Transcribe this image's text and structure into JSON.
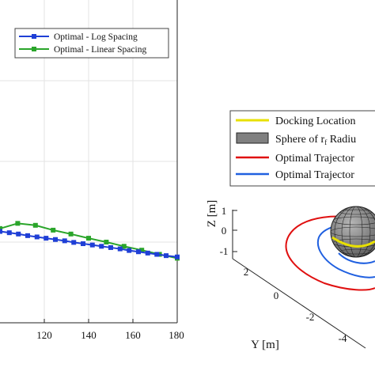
{
  "chart_data": [
    {
      "type": "line",
      "title": "",
      "xlabel": "",
      "ylabel": "",
      "xlim": [
        100,
        180
      ],
      "ylim": [
        0,
        1
      ],
      "xticks": [
        120,
        140,
        160,
        180
      ],
      "grid": true,
      "legend_position": "top-right",
      "series": [
        {
          "name": "Optimal - Log Spacing",
          "color": "#1f3fd6",
          "marker": "square",
          "x": [
            100,
            104.2,
            108.3,
            112.5,
            116.7,
            120.8,
            125.0,
            129.2,
            133.3,
            137.5,
            141.7,
            145.8,
            150.0,
            154.2,
            158.3,
            162.5,
            166.7,
            170.8,
            175.0,
            180.0
          ],
          "y": [
            0.283,
            0.279,
            0.275,
            0.27,
            0.266,
            0.262,
            0.258,
            0.254,
            0.249,
            0.245,
            0.241,
            0.237,
            0.233,
            0.229,
            0.224,
            0.22,
            0.216,
            0.212,
            0.208,
            0.204
          ]
        },
        {
          "name": "Optimal - Linear Spacing",
          "color": "#2aa52a",
          "marker": "square",
          "x": [
            100,
            108,
            116,
            124,
            132,
            140,
            148,
            156,
            164,
            172,
            180
          ],
          "y": [
            0.292,
            0.308,
            0.302,
            0.287,
            0.275,
            0.262,
            0.25,
            0.237,
            0.225,
            0.212,
            0.2
          ]
        }
      ]
    },
    {
      "type": "scatter",
      "title": "",
      "xlabel": "",
      "ylabel": "Y [m]",
      "zlabel": "Z [m]",
      "zlim": [
        -1,
        1
      ],
      "zticks": [
        "1",
        "0",
        "-1"
      ],
      "yticks": [
        "2",
        "0",
        "-2",
        "-4"
      ],
      "legend_position": "top-right",
      "series": [
        {
          "name": "Docking Location",
          "color": "#e8e000"
        },
        {
          "name": "Sphere of r",
          "name_subscript": "f",
          "name_suffix": " Radiu",
          "color": "#808080"
        },
        {
          "name": "Optimal Trajector",
          "color": "#e01010"
        },
        {
          "name": "Optimal Trajector",
          "color": "#2060e0"
        }
      ]
    }
  ]
}
